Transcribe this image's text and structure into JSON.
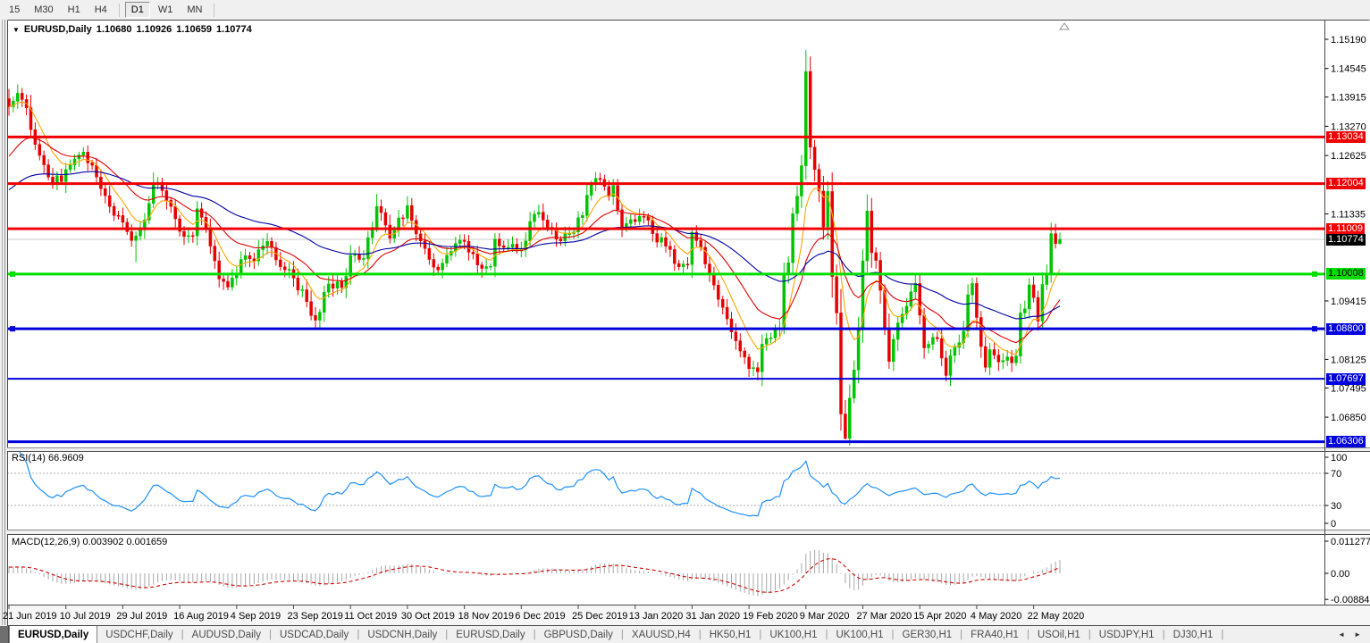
{
  "toolbar": {
    "timeframes": [
      "15",
      "M30",
      "H1",
      "H4",
      "D1",
      "W1",
      "MN"
    ],
    "active": "D1"
  },
  "quote": {
    "dropdown_icon": "▼",
    "symbol_label": "EURUSD,Daily",
    "open": "1.10680",
    "high": "1.10926",
    "low": "1.10659",
    "close": "1.10774"
  },
  "chart_data": {
    "type": "candlestick",
    "symbol": "EURUSD",
    "timeframe": "Daily",
    "bars": 241,
    "x_axis": {
      "labels": [
        "21 Jun 2019",
        "10 Jul 2019",
        "29 Jul 2019",
        "16 Aug 2019",
        "4 Sep 2019",
        "23 Sep 2019",
        "11 Oct 2019",
        "30 Oct 2019",
        "18 Nov 2019",
        "6 Dec 2019",
        "25 Dec 2019",
        "13 Jan 2020",
        "31 Jan 2020",
        "19 Feb 2020",
        "9 Mar 2020",
        "27 Mar 2020",
        "15 Apr 2020",
        "4 May 2020",
        "22 May 2020"
      ],
      "label_bar_interval": 13
    },
    "y_axis": {
      "visible_ticks": [
        "1.15190",
        "1.14545",
        "1.13915",
        "1.13270",
        "1.12625",
        "1.11335",
        "1.09415",
        "1.08125",
        "1.07495",
        "1.06850"
      ],
      "top_price": 1.1519,
      "bottom_price": 1.062
    },
    "close_anchors": [
      [
        0,
        1.137
      ],
      [
        2,
        1.14
      ],
      [
        4,
        1.1368
      ],
      [
        6,
        1.1287
      ],
      [
        9,
        1.1215
      ],
      [
        12,
        1.1205
      ],
      [
        15,
        1.1255
      ],
      [
        17,
        1.127
      ],
      [
        20,
        1.1215
      ],
      [
        23,
        1.115
      ],
      [
        26,
        1.1115
      ],
      [
        28,
        1.1075
      ],
      [
        29,
        1.1085
      ],
      [
        31,
        1.112
      ],
      [
        33,
        1.12
      ],
      [
        35,
        1.1185
      ],
      [
        37,
        1.115
      ],
      [
        39,
        1.1095
      ],
      [
        42,
        1.1085
      ],
      [
        43,
        1.1145
      ],
      [
        45,
        1.11
      ],
      [
        48,
        1.099
      ],
      [
        50,
        1.0972
      ],
      [
        53,
        1.1033
      ],
      [
        56,
        1.103
      ],
      [
        58,
        1.1063
      ],
      [
        59,
        1.1073
      ],
      [
        62,
        1.1017
      ],
      [
        65,
        1.0992
      ],
      [
        68,
        1.094
      ],
      [
        70,
        1.0899
      ],
      [
        73,
        1.0979
      ],
      [
        76,
        1.0971
      ],
      [
        78,
        1.1042
      ],
      [
        81,
        1.1035
      ],
      [
        84,
        1.115
      ],
      [
        87,
        1.108
      ],
      [
        91,
        1.1152
      ],
      [
        94,
        1.1074
      ],
      [
        98,
        1.101
      ],
      [
        101,
        1.1051
      ],
      [
        104,
        1.1073
      ],
      [
        107,
        1.1021
      ],
      [
        110,
        1.1018
      ],
      [
        111,
        1.1078
      ],
      [
        114,
        1.106
      ],
      [
        117,
        1.1055
      ],
      [
        120,
        1.1133
      ],
      [
        122,
        1.112
      ],
      [
        125,
        1.1078
      ],
      [
        128,
        1.109
      ],
      [
        131,
        1.113
      ],
      [
        133,
        1.1199
      ],
      [
        134,
        1.1212
      ],
      [
        137,
        1.1172
      ],
      [
        138,
        1.1196
      ],
      [
        140,
        1.1105
      ],
      [
        142,
        1.1121
      ],
      [
        145,
        1.1128
      ],
      [
        147,
        1.109
      ],
      [
        151,
        1.1055
      ],
      [
        152,
        1.1024
      ],
      [
        155,
        1.1022
      ],
      [
        156,
        1.1093
      ],
      [
        158,
        1.106
      ],
      [
        160,
        1.0999
      ],
      [
        162,
        1.0945
      ],
      [
        165,
        1.0873
      ],
      [
        167,
        1.0831
      ],
      [
        169,
        1.0792
      ],
      [
        171,
        1.0785
      ],
      [
        172,
        1.0846
      ],
      [
        174,
        1.086
      ],
      [
        176,
        1.0881
      ],
      [
        177,
        1.0999
      ],
      [
        178,
        1.1026
      ],
      [
        179,
        1.1134
      ],
      [
        180,
        1.1173
      ],
      [
        181,
        1.124
      ],
      [
        182,
        1.1448
      ],
      [
        183,
        1.1281
      ],
      [
        185,
        1.1184
      ],
      [
        186,
        1.1105
      ],
      [
        187,
        1.1183
      ],
      [
        188,
        1.0995
      ],
      [
        189,
        1.0915
      ],
      [
        190,
        1.0692
      ],
      [
        191,
        1.0638
      ],
      [
        192,
        1.0727
      ],
      [
        193,
        1.0789
      ],
      [
        194,
        1.0882
      ],
      [
        195,
        1.103
      ],
      [
        196,
        1.114
      ],
      [
        197,
        1.1048
      ],
      [
        198,
        1.1031
      ],
      [
        199,
        1.0965
      ],
      [
        201,
        1.0808
      ],
      [
        203,
        1.0893
      ],
      [
        205,
        1.093
      ],
      [
        207,
        1.098
      ],
      [
        208,
        1.091
      ],
      [
        209,
        1.0838
      ],
      [
        212,
        1.0858
      ],
      [
        214,
        1.0777
      ],
      [
        215,
        1.0821
      ],
      [
        218,
        1.0875
      ],
      [
        219,
        1.0955
      ],
      [
        220,
        1.098
      ],
      [
        221,
        1.0905
      ],
      [
        223,
        1.0795
      ],
      [
        224,
        1.0834
      ],
      [
        226,
        1.0807
      ],
      [
        228,
        1.0818
      ],
      [
        229,
        1.0805
      ],
      [
        230,
        1.082
      ],
      [
        231,
        1.0915
      ],
      [
        232,
        1.0924
      ],
      [
        233,
        1.0977
      ],
      [
        234,
        1.0949
      ],
      [
        235,
        1.0897
      ],
      [
        236,
        1.0978
      ],
      [
        237,
        1.1002
      ],
      [
        238,
        1.109
      ],
      [
        239,
        1.1068
      ],
      [
        240,
        1.10774
      ]
    ],
    "last_bar_ohlc": [
      1.1068,
      1.10926,
      1.10659,
      1.10774
    ],
    "wick_specials": {
      "29": [
        null,
        1.1027
      ],
      "70": [
        null,
        1.0879
      ],
      "182": [
        1.1495,
        null
      ],
      "190": [
        null,
        1.0655
      ],
      "191": [
        null,
        1.0636
      ]
    },
    "moving_averages": [
      {
        "period": 8,
        "color": "#FFA500",
        "seed": null
      },
      {
        "period": 21,
        "color": "#E00000",
        "seed": 1.125
      },
      {
        "period": 55,
        "color": "#0000A8",
        "seed": 1.118
      }
    ],
    "horizontal_lines": [
      {
        "price": 1.13034,
        "label": "1.13034",
        "color": "#F00000",
        "width": 3,
        "badge_fg": "#FFFFFF",
        "handles": false
      },
      {
        "price": 1.12004,
        "label": "1.12004",
        "color": "#F00000",
        "width": 3,
        "badge_fg": "#FFFFFF",
        "handles": false
      },
      {
        "price": 1.11009,
        "label": "1.11009",
        "color": "#F00000",
        "width": 3,
        "badge_fg": "#FFFFFF",
        "handles": false
      },
      {
        "price": 1.10008,
        "label": "1.10008",
        "color": "#00DE00",
        "width": 3,
        "badge_fg": "#000000",
        "handles": true
      },
      {
        "price": 1.088,
        "label": "1.08800",
        "color": "#0000DC",
        "width": 3,
        "badge_fg": "#FFFFFF",
        "handles": true
      },
      {
        "price": 1.07697,
        "label": "1.07697",
        "color": "#0000DC",
        "width": 2,
        "badge_fg": "#FFFFFF",
        "handles": false
      },
      {
        "price": 1.06306,
        "label": "1.06306",
        "color": "#0000DC",
        "width": 3,
        "badge_fg": "#FFFFFF",
        "handles": false
      }
    ],
    "current_price": {
      "label": "1.10774",
      "price": 1.10774,
      "line_color": "#C8C8C8",
      "badge_bg": "#000000",
      "badge_fg": "#FFFFFF"
    },
    "indicators": [
      {
        "name": "RSI",
        "label": "RSI(14) 66.9609",
        "period": 14,
        "value": 66.9609,
        "levels": [
          70,
          30
        ],
        "axis_ticks": [
          100,
          70,
          30,
          0
        ],
        "line_color": "#1E90FF",
        "level_color": "#ACACAC"
      },
      {
        "name": "MACD",
        "label": "MACD(12,26,9) 0.003902 0.001659",
        "fast": 12,
        "slow": 26,
        "signal_period": 9,
        "main_value": 0.003902,
        "signal_value": 0.001659,
        "axis_ticks": [
          [
            "0.011277",
            0.011277
          ],
          [
            "0.00",
            0
          ],
          [
            "-0.008845",
            -0.008845
          ]
        ],
        "histogram_color": "#A8A8A8",
        "signal_color": "#D00000"
      }
    ],
    "colors": {
      "bull": "#00C400",
      "bear": "#E60000",
      "background": "#FFFFFF"
    }
  },
  "tabs": {
    "items": [
      "EURUSD,Daily",
      "USDCHF,Daily",
      "AUDUSD,Daily",
      "USDCAD,Daily",
      "USDCNH,Daily",
      "EURUSD,Daily",
      "GBPUSD,Daily",
      "XAUUSD,H4",
      "HK50,H1",
      "UK100,H1",
      "UK100,H1",
      "GER30,H1",
      "FRA40,H1",
      "USOil,H1",
      "USDJPY,H1",
      "DJ30,H1"
    ],
    "active_index": 0,
    "scroll_left_icon": "◄",
    "scroll_right_icon": "►"
  }
}
